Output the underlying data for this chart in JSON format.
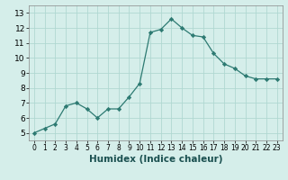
{
  "x": [
    0,
    1,
    2,
    3,
    4,
    5,
    6,
    7,
    8,
    9,
    10,
    11,
    12,
    13,
    14,
    15,
    16,
    17,
    18,
    19,
    20,
    21,
    22,
    23
  ],
  "y": [
    5.0,
    5.3,
    5.6,
    6.8,
    7.0,
    6.6,
    6.0,
    6.6,
    6.6,
    7.4,
    8.3,
    11.7,
    11.9,
    12.6,
    12.0,
    11.5,
    11.4,
    10.3,
    9.6,
    9.3,
    8.8,
    8.6,
    8.6,
    8.6
  ],
  "line_color": "#2d7a72",
  "marker": "D",
  "marker_size": 2.2,
  "bg_color": "#d5eeea",
  "grid_color": "#b0d8d2",
  "xlabel": "Humidex (Indice chaleur)",
  "ylim": [
    4.5,
    13.5
  ],
  "xlim": [
    -0.5,
    23.5
  ],
  "yticks": [
    5,
    6,
    7,
    8,
    9,
    10,
    11,
    12,
    13
  ],
  "xticks": [
    0,
    1,
    2,
    3,
    4,
    5,
    6,
    7,
    8,
    9,
    10,
    11,
    12,
    13,
    14,
    15,
    16,
    17,
    18,
    19,
    20,
    21,
    22,
    23
  ],
  "xlabel_fontsize": 7.5,
  "xtick_fontsize": 5.5,
  "ytick_fontsize": 6.5,
  "label_color": "#1a5050",
  "spine_color": "#888888"
}
